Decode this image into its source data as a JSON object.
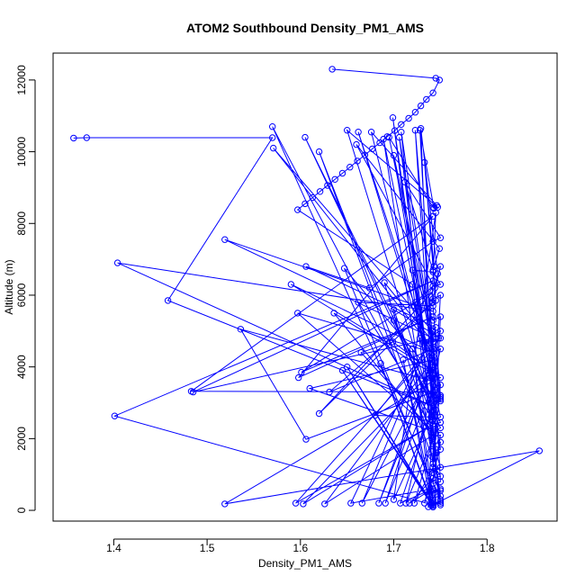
{
  "chart_data": {
    "type": "line",
    "title": "ATOM2 Southbound Density_PM1_AMS",
    "xlabel": "Density_PM1_AMS",
    "ylabel": "Altitude (m)",
    "xlim": [
      1.335,
      1.875
    ],
    "ylim": [
      -300,
      12750
    ],
    "x_ticks": [
      "1.4",
      "1.5",
      "1.6",
      "1.7",
      "1.8"
    ],
    "y_ticks": [
      "0",
      "2000",
      "4000",
      "6000",
      "8000",
      "10000",
      "12000"
    ],
    "grid": false,
    "legend": "none",
    "marker": "open-circle",
    "series": [
      {
        "color": "#0000ff",
        "x": [
          1.634,
          1.745,
          1.749,
          1.742,
          1.735,
          1.729,
          1.723,
          1.716,
          1.708,
          1.701,
          1.693,
          1.685,
          1.677,
          1.669,
          1.661,
          1.653,
          1.645,
          1.637,
          1.629,
          1.621,
          1.613,
          1.605,
          1.597,
          1.72,
          1.75,
          1.742,
          1.57,
          1.75,
          1.742,
          1.75,
          1.662,
          1.75,
          1.74,
          1.65,
          1.747,
          1.743,
          1.728,
          1.745,
          1.741,
          1.708,
          1.75,
          1.742,
          1.699,
          1.745,
          1.741,
          1.62,
          1.746,
          1.742,
          1.689,
          1.745,
          1.741,
          1.706,
          1.75,
          1.742,
          1.723,
          1.744,
          1.741,
          1.676,
          1.746,
          1.742,
          1.695,
          1.742,
          1.571,
          1.748,
          1.743,
          1.7,
          1.745,
          1.741,
          1.729,
          1.747,
          1.744,
          1.66,
          1.749,
          1.743,
          1.733,
          1.745,
          1.741,
          1.745,
          1.7,
          1.75,
          1.742,
          1.605,
          1.75,
          1.742,
          1.75,
          1.742,
          1.75,
          1.742,
          1.712,
          1.75,
          1.742,
          1.674,
          1.606,
          1.745,
          1.741,
          1.742,
          1.69,
          1.75,
          1.742,
          1.75,
          1.742,
          1.72,
          1.742,
          1.75,
          1.742,
          1.723,
          1.75,
          1.742,
          1.7,
          1.75,
          1.742,
          1.68,
          1.74,
          1.662,
          1.742,
          1.75,
          1.742,
          1.7,
          1.75,
          1.742,
          1.665,
          1.699,
          1.75,
          1.742,
          1.75,
          1.742,
          1.75,
          1.742,
          1.742,
          1.728,
          1.742,
          1.75,
          1.742,
          1.75,
          1.742,
          1.742,
          1.75,
          1.742,
          1.742,
          1.75,
          1.742,
          1.75,
          1.742,
          1.75,
          1.742,
          1.75,
          1.742,
          1.75,
          1.742,
          1.74,
          1.75,
          1.742,
          1.742,
          1.742,
          1.72,
          1.74,
          1.71,
          1.742,
          1.742,
          1.686,
          1.742,
          1.742,
          1.75,
          1.742,
          1.65,
          1.742,
          1.74,
          1.74,
          1.742,
          1.645,
          1.742,
          1.742,
          1.742,
          1.742,
          1.74,
          1.742,
          1.742,
          1.742
        ],
        "y": [
          12300,
          12050,
          12000,
          11640,
          11460,
          11280,
          11100,
          10930,
          10760,
          10590,
          10420,
          10250,
          10080,
          9910,
          9740,
          9570,
          9400,
          9230,
          9060,
          8890,
          8720,
          8550,
          8380,
          6300,
          150,
          2200,
          10700,
          300,
          1200,
          3500,
          10550,
          3100,
          3000,
          10600,
          8450,
          8420,
          10600,
          2150,
          2000,
          10550,
          3150,
          3100,
          10950,
          1700,
          1500,
          10000,
          1600,
          1300,
          10350,
          3350,
          3200,
          10400,
          3050,
          3000,
          10600,
          4000,
          3700,
          10550,
          8500,
          8450,
          10400,
          4500,
          10100,
          4800,
          4700,
          9900,
          2800,
          2500,
          10650,
          6600,
          6200,
          10200,
          7300,
          6800,
          9700,
          5850,
          5800,
          8300,
          300,
          3200,
          3100,
          10400,
          2450,
          2400,
          6000,
          5900,
          6800,
          6700,
          9150,
          7600,
          7500,
          6200,
          6800,
          5100,
          5000,
          4700,
          6350,
          1200,
          1050,
          5400,
          5300,
          6700,
          6650,
          6300,
          6250,
          5800,
          2600,
          2500,
          5600,
          4800,
          4700,
          2650,
          2600,
          5800,
          5700,
          3200,
          3100,
          5300,
          2300,
          2200,
          4400,
          4700,
          3700,
          3600,
          4500,
          4400,
          5000,
          4900,
          3300,
          4800,
          4700,
          800,
          750,
          2100,
          2050,
          2800,
          1700,
          1650,
          1300,
          950,
          900,
          1900,
          1850,
          400,
          350,
          550,
          500,
          600,
          550,
          150,
          200,
          150,
          100,
          300,
          4500,
          200,
          4200,
          250,
          150,
          4100,
          100,
          200,
          250,
          150,
          4000,
          100,
          200,
          150,
          100,
          3900,
          150,
          200,
          100,
          150,
          200,
          100,
          150,
          200
        ]
      },
      {
        "color": "#0000ff",
        "x": [
          1.357,
          1.371,
          1.57,
          1.458,
          1.742,
          1.404,
          1.742,
          1.519,
          1.742,
          1.485,
          1.742,
          1.401,
          1.742,
          1.856,
          1.519,
          1.742,
          1.536,
          1.606,
          1.742,
          1.483,
          1.742,
          1.598,
          1.742,
          1.601,
          1.742,
          1.62,
          1.742,
          1.631,
          1.742,
          1.595,
          1.742,
          1.603,
          1.742,
          1.59,
          1.742,
          1.597,
          1.742,
          1.61,
          1.742,
          1.626,
          1.742,
          1.636,
          1.742,
          1.647,
          1.742,
          1.654,
          1.742,
          1.666,
          1.742,
          1.684,
          1.742,
          1.691,
          1.742,
          1.713,
          1.742,
          1.722,
          1.742,
          1.733,
          1.742,
          1.717,
          1.742,
          1.707,
          1.742,
          1.737,
          1.742
        ],
        "y": [
          10380,
          10390,
          10390,
          5850,
          2900,
          6900,
          5550,
          7550,
          4800,
          3300,
          6400,
          2630,
          150,
          1660,
          180,
          3600,
          5050,
          1980,
          3300,
          3320,
          8200,
          3700,
          5400,
          3850,
          6100,
          2700,
          5800,
          3300,
          4500,
          200,
          2400,
          180,
          3900,
          6300,
          4400,
          5500,
          2200,
          3400,
          4200,
          180,
          2100,
          5500,
          3800,
          6750,
          600,
          200,
          5000,
          200,
          4000,
          200,
          4300,
          200,
          3500,
          200,
          2000,
          200,
          1200,
          200,
          900,
          200,
          600,
          200,
          2900,
          100,
          300
        ]
      }
    ]
  }
}
